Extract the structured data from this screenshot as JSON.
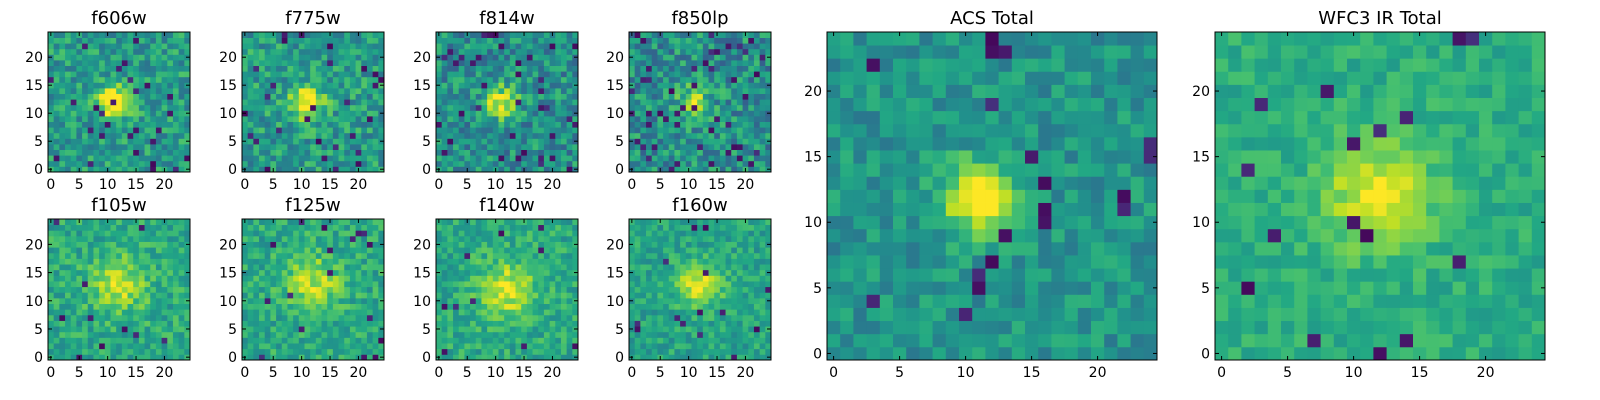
{
  "figure": {
    "panels": [
      {
        "id": "f606w",
        "title": "f606w",
        "kind": "small",
        "seed": 11,
        "peak": [
          11,
          12
        ],
        "sigma": 2.0,
        "amp": 0.55,
        "base": 0.55,
        "noise": 0.34,
        "holes": 0.05
      },
      {
        "id": "f775w",
        "title": "f775w",
        "kind": "small",
        "seed": 23,
        "peak": [
          11,
          12
        ],
        "sigma": 2.0,
        "amp": 0.55,
        "base": 0.55,
        "noise": 0.36,
        "holes": 0.05
      },
      {
        "id": "f814w",
        "title": "f814w",
        "kind": "small",
        "seed": 37,
        "peak": [
          11,
          12
        ],
        "sigma": 2.0,
        "amp": 0.5,
        "base": 0.5,
        "noise": 0.38,
        "holes": 0.06
      },
      {
        "id": "f850lp",
        "title": "f850lp",
        "kind": "small",
        "seed": 41,
        "peak": [
          11,
          12
        ],
        "sigma": 2.0,
        "amp": 0.35,
        "base": 0.5,
        "noise": 0.4,
        "holes": 0.07
      },
      {
        "id": "f105w",
        "title": "f105w",
        "kind": "small",
        "seed": 53,
        "peak": [
          12,
          13
        ],
        "sigma": 3.5,
        "amp": 0.3,
        "base": 0.6,
        "noise": 0.28,
        "holes": 0.02
      },
      {
        "id": "f125w",
        "title": "f125w",
        "kind": "small",
        "seed": 67,
        "peak": [
          12,
          13
        ],
        "sigma": 3.5,
        "amp": 0.3,
        "base": 0.6,
        "noise": 0.28,
        "holes": 0.03
      },
      {
        "id": "f140w",
        "title": "f140w",
        "kind": "small",
        "seed": 71,
        "peak": [
          12,
          12
        ],
        "sigma": 3.5,
        "amp": 0.35,
        "base": 0.6,
        "noise": 0.27,
        "holes": 0.02
      },
      {
        "id": "f160w",
        "title": "f160w",
        "kind": "small",
        "seed": 83,
        "peak": [
          12,
          13
        ],
        "sigma": 2.8,
        "amp": 0.4,
        "base": 0.58,
        "noise": 0.25,
        "holes": 0.02
      },
      {
        "id": "acs-total",
        "title": "ACS Total",
        "kind": "large",
        "seed": 97,
        "peak": [
          11,
          12
        ],
        "sigma": 1.8,
        "amp": 0.6,
        "base": 0.52,
        "noise": 0.25,
        "holes": 0.04
      },
      {
        "id": "wfc3-ir-total",
        "title": "WFC3 IR Total",
        "kind": "large",
        "seed": 101,
        "peak": [
          12,
          12
        ],
        "sigma": 2.8,
        "amp": 0.38,
        "base": 0.62,
        "noise": 0.18,
        "holes": 0.03
      }
    ]
  },
  "chart_data": [
    {
      "type": "heatmap",
      "title": "f606w",
      "xlabel": "",
      "ylabel": "",
      "xlim": [
        -0.5,
        24.5
      ],
      "ylim": [
        -0.5,
        24.5
      ],
      "xticks": [
        0,
        5,
        10,
        15,
        20
      ],
      "yticks": [
        0,
        5,
        10,
        15,
        20
      ],
      "grid": false,
      "colormap": "viridis",
      "grid_size": [
        25,
        25
      ],
      "source_peak_pixel": [
        11,
        12
      ]
    },
    {
      "type": "heatmap",
      "title": "f775w",
      "xlabel": "",
      "ylabel": "",
      "xlim": [
        -0.5,
        24.5
      ],
      "ylim": [
        -0.5,
        24.5
      ],
      "xticks": [
        0,
        5,
        10,
        15,
        20
      ],
      "yticks": [
        0,
        5,
        10,
        15,
        20
      ],
      "grid": false,
      "colormap": "viridis",
      "grid_size": [
        25,
        25
      ],
      "source_peak_pixel": [
        11,
        12
      ]
    },
    {
      "type": "heatmap",
      "title": "f814w",
      "xlabel": "",
      "ylabel": "",
      "xlim": [
        -0.5,
        24.5
      ],
      "ylim": [
        -0.5,
        24.5
      ],
      "xticks": [
        0,
        5,
        10,
        15,
        20
      ],
      "yticks": [
        0,
        5,
        10,
        15,
        20
      ],
      "grid": false,
      "colormap": "viridis",
      "grid_size": [
        25,
        25
      ],
      "source_peak_pixel": [
        11,
        12
      ]
    },
    {
      "type": "heatmap",
      "title": "f850lp",
      "xlabel": "",
      "ylabel": "",
      "xlim": [
        -0.5,
        24.5
      ],
      "ylim": [
        -0.5,
        24.5
      ],
      "xticks": [
        0,
        5,
        10,
        15,
        20
      ],
      "yticks": [
        0,
        5,
        10,
        15,
        20
      ],
      "grid": false,
      "colormap": "viridis",
      "grid_size": [
        25,
        25
      ],
      "source_peak_pixel": [
        11,
        12
      ]
    },
    {
      "type": "heatmap",
      "title": "f105w",
      "xlabel": "",
      "ylabel": "",
      "xlim": [
        -0.5,
        24.5
      ],
      "ylim": [
        -0.5,
        24.5
      ],
      "xticks": [
        0,
        5,
        10,
        15,
        20
      ],
      "yticks": [
        0,
        5,
        10,
        15,
        20
      ],
      "grid": false,
      "colormap": "viridis",
      "grid_size": [
        25,
        25
      ],
      "source_peak_pixel": [
        12,
        13
      ]
    },
    {
      "type": "heatmap",
      "title": "f125w",
      "xlabel": "",
      "ylabel": "",
      "xlim": [
        -0.5,
        24.5
      ],
      "ylim": [
        -0.5,
        24.5
      ],
      "xticks": [
        0,
        5,
        10,
        15,
        20
      ],
      "yticks": [
        0,
        5,
        10,
        15,
        20
      ],
      "grid": false,
      "colormap": "viridis",
      "grid_size": [
        25,
        25
      ],
      "source_peak_pixel": [
        12,
        13
      ]
    },
    {
      "type": "heatmap",
      "title": "f140w",
      "xlabel": "",
      "ylabel": "",
      "xlim": [
        -0.5,
        24.5
      ],
      "ylim": [
        -0.5,
        24.5
      ],
      "xticks": [
        0,
        5,
        10,
        15,
        20
      ],
      "yticks": [
        0,
        5,
        10,
        15,
        20
      ],
      "grid": false,
      "colormap": "viridis",
      "grid_size": [
        25,
        25
      ],
      "source_peak_pixel": [
        12,
        12
      ]
    },
    {
      "type": "heatmap",
      "title": "f160w",
      "xlabel": "",
      "ylabel": "",
      "xlim": [
        -0.5,
        24.5
      ],
      "ylim": [
        -0.5,
        24.5
      ],
      "xticks": [
        0,
        5,
        10,
        15,
        20
      ],
      "yticks": [
        0,
        5,
        10,
        15,
        20
      ],
      "grid": false,
      "colormap": "viridis",
      "grid_size": [
        25,
        25
      ],
      "source_peak_pixel": [
        12,
        13
      ]
    },
    {
      "type": "heatmap",
      "title": "ACS Total",
      "xlabel": "",
      "ylabel": "",
      "xlim": [
        -0.5,
        24.5
      ],
      "ylim": [
        -0.5,
        24.5
      ],
      "xticks": [
        0,
        5,
        10,
        15,
        20
      ],
      "yticks": [
        0,
        5,
        10,
        15,
        20
      ],
      "grid": false,
      "colormap": "viridis",
      "grid_size": [
        25,
        25
      ],
      "source_peak_pixel": [
        11,
        12
      ]
    },
    {
      "type": "heatmap",
      "title": "WFC3 IR Total",
      "xlabel": "",
      "ylabel": "",
      "xlim": [
        -0.5,
        24.5
      ],
      "ylim": [
        -0.5,
        24.5
      ],
      "xticks": [
        0,
        5,
        10,
        15,
        20
      ],
      "yticks": [
        0,
        5,
        10,
        15,
        20
      ],
      "grid": false,
      "colormap": "viridis",
      "grid_size": [
        25,
        25
      ],
      "source_peak_pixel": [
        12,
        12
      ]
    }
  ]
}
